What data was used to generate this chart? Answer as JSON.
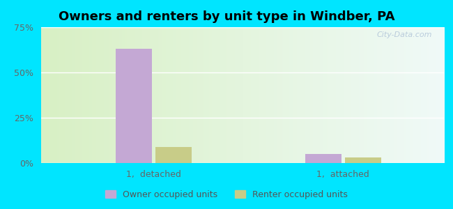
{
  "title": "Owners and renters by unit type in Windber, PA",
  "categories": [
    "1,  detached",
    "1,  attached"
  ],
  "owner_values": [
    63,
    5
  ],
  "renter_values": [
    9,
    3
  ],
  "owner_color": "#c4a8d4",
  "renter_color": "#c8cc88",
  "ylim": [
    0,
    75
  ],
  "yticks": [
    0,
    25,
    50,
    75
  ],
  "ytick_labels": [
    "0%",
    "25%",
    "50%",
    "75%"
  ],
  "legend_owner": "Owner occupied units",
  "legend_renter": "Renter occupied units",
  "title_fontsize": 13,
  "tick_fontsize": 9,
  "legend_fontsize": 9,
  "watermark": "City-Data.com",
  "bg_cyan": "#00e5ff",
  "group_positions": [
    0.28,
    0.75
  ],
  "bar_width": 0.09
}
